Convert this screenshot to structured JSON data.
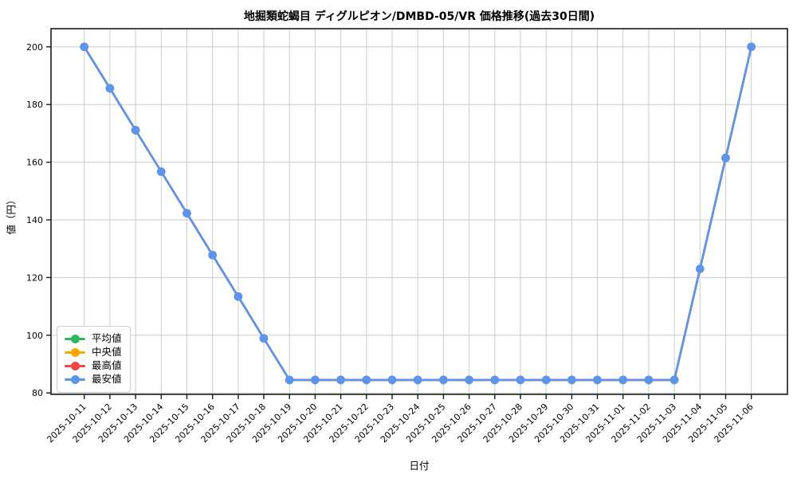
{
  "title": "地掘類蛇蝎目 ディグルピオン/DMBD-05/VR 価格推移(過去30日間)",
  "chart_data": {
    "type": "line",
    "title": "地掘類蛇蝎目 ディグルピオン/DMBD-05/VR 価格推移(過去30日間)",
    "xlabel": "日付",
    "ylabel": "値（円）",
    "grid": true,
    "legend_position": "lower-left",
    "ylim": [
      79.5,
      206.3
    ],
    "yticks": [
      80,
      100,
      120,
      140,
      160,
      180,
      200
    ],
    "categories": [
      "2025-10-11",
      "2025-10-12",
      "2025-10-13",
      "2025-10-14",
      "2025-10-15",
      "2025-10-16",
      "2025-10-17",
      "2025-10-18",
      "2025-10-19",
      "2025-10-20",
      "2025-10-21",
      "2025-10-22",
      "2025-10-23",
      "2025-10-24",
      "2025-10-25",
      "2025-10-26",
      "2025-10-27",
      "2025-10-28",
      "2025-10-29",
      "2025-10-30",
      "2025-10-31",
      "2025-11-01",
      "2025-11-02",
      "2025-11-03",
      "2025-11-04",
      "2025-11-05",
      "2025-11-06"
    ],
    "series": [
      {
        "name": "平均値",
        "color": "#2eb85c",
        "values": [
          200.0,
          185.6,
          171.1,
          156.7,
          142.3,
          127.8,
          113.4,
          98.9,
          84.5,
          84.5,
          84.5,
          84.5,
          84.5,
          84.5,
          84.5,
          84.5,
          84.5,
          84.5,
          84.5,
          84.5,
          84.5,
          84.5,
          84.5,
          84.5,
          123.0,
          161.5,
          200.0
        ]
      },
      {
        "name": "中央値",
        "color": "#ffa502",
        "values": [
          200.0,
          185.6,
          171.1,
          156.7,
          142.3,
          127.8,
          113.4,
          98.9,
          84.5,
          84.5,
          84.5,
          84.5,
          84.5,
          84.5,
          84.5,
          84.5,
          84.5,
          84.5,
          84.5,
          84.5,
          84.5,
          84.5,
          84.5,
          84.5,
          123.0,
          161.5,
          200.0
        ]
      },
      {
        "name": "最高値",
        "color": "#f04646",
        "values": [
          200.0,
          185.6,
          171.1,
          156.7,
          142.3,
          127.8,
          113.4,
          98.9,
          84.5,
          84.5,
          84.5,
          84.5,
          84.5,
          84.5,
          84.5,
          84.5,
          84.5,
          84.5,
          84.5,
          84.5,
          84.5,
          84.5,
          84.5,
          84.5,
          123.0,
          161.5,
          200.0
        ]
      },
      {
        "name": "最安値",
        "color": "#5b96ee",
        "values": [
          200.0,
          185.6,
          171.1,
          156.7,
          142.3,
          127.8,
          113.4,
          98.9,
          84.5,
          84.5,
          84.5,
          84.5,
          84.5,
          84.5,
          84.5,
          84.5,
          84.5,
          84.5,
          84.5,
          84.5,
          84.5,
          84.5,
          84.5,
          84.5,
          123.0,
          161.5,
          200.0
        ]
      }
    ]
  },
  "colors": {
    "background": "#ffffff",
    "grid": "#cdcdcd",
    "axis": "#1a1a1a",
    "text": "#000000"
  }
}
